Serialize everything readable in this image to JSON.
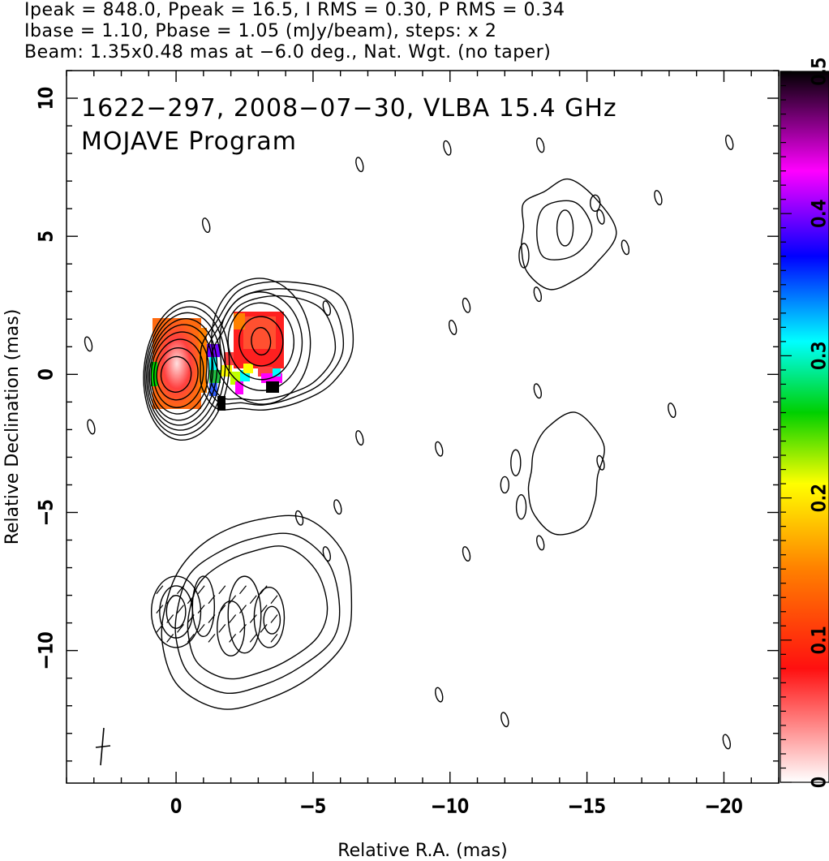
{
  "header": {
    "line1": "Ipeak = 848.0, Ppeak = 16.5, I RMS = 0.30, P RMS = 0.34",
    "line2": "Ibase = 1.10, Pbase = 1.05 (mJy/beam), steps: x 2",
    "line3": "Beam: 1.35x0.48 mas at −6.0 deg., Nat. Wgt. (no taper)"
  },
  "chart_data": {
    "type": "contour",
    "annotations": [
      "1622−297, 2008−07−30, VLBA 15.4 GHz",
      "MOJAVE Program"
    ],
    "xlabel": "Relative R.A. (mas)",
    "ylabel": "Relative Declination (mas)",
    "xlim": [
      4,
      -22
    ],
    "ylim": [
      -14.8,
      11
    ],
    "x_ticks": [
      {
        "value": 0,
        "label": "0"
      },
      {
        "value": -5,
        "label": "−5"
      },
      {
        "value": -10,
        "label": "−10"
      },
      {
        "value": -15,
        "label": "−15"
      },
      {
        "value": -20,
        "label": "−20"
      }
    ],
    "y_ticks": [
      {
        "value": 10,
        "label": "10"
      },
      {
        "value": 5,
        "label": "5"
      },
      {
        "value": 0,
        "label": "0"
      },
      {
        "value": -5,
        "label": "−5"
      },
      {
        "value": -10,
        "label": "−10"
      }
    ],
    "colorbar": {
      "range": [
        0,
        0.5
      ],
      "ticks": [
        {
          "value": 0,
          "label": "0"
        },
        {
          "value": 0.1,
          "label": "0.1"
        },
        {
          "value": 0.2,
          "label": "0.2"
        },
        {
          "value": 0.3,
          "label": "0.3"
        },
        {
          "value": 0.4,
          "label": "0.4"
        },
        {
          "value": 0.5,
          "label": "0.5"
        }
      ],
      "colors": [
        "#ffffff",
        "#ff1010",
        "#ff8000",
        "#ffff00",
        "#00d000",
        "#00ffff",
        "#0000ff",
        "#ff00ff",
        "#000000"
      ]
    },
    "images": [
      {
        "name": "upper",
        "center": [
          0,
          0
        ],
        "core_contours": [
          [
            0.55,
            0.65
          ],
          [
            0.75,
            0.95
          ],
          [
            0.9,
            1.25
          ],
          [
            1.05,
            1.5
          ],
          [
            1.15,
            1.75
          ],
          [
            1.25,
            1.95
          ],
          [
            1.35,
            2.15
          ],
          [
            1.45,
            2.35
          ],
          [
            1.55,
            2.55
          ]
        ],
        "knot": {
          "center": [
            -3.1,
            1.2
          ],
          "contours": [
            [
              0.35,
              0.5
            ],
            [
              0.8,
              0.9
            ],
            [
              1.2,
              1.4
            ],
            [
              1.5,
              1.8
            ],
            [
              1.8,
              2.3
            ]
          ]
        }
      },
      {
        "name": "lower",
        "center": [
          -0.5,
          -8.7
        ]
      }
    ],
    "spurious_contours": [
      [
        -6.7,
        7.6
      ],
      [
        -9.9,
        8.2
      ],
      [
        -13.3,
        8.3
      ],
      [
        -20.2,
        8.4
      ],
      [
        -1.1,
        5.4
      ],
      [
        -17.6,
        6.4
      ],
      [
        -15.5,
        5.7
      ],
      [
        -16.4,
        4.6
      ],
      [
        -5.5,
        2.4
      ],
      [
        -10.6,
        2.5
      ],
      [
        -13.2,
        2.9
      ],
      [
        -10.1,
        1.7
      ],
      [
        3.2,
        1.1
      ],
      [
        -13.2,
        -0.6
      ],
      [
        -18.1,
        -1.3
      ],
      [
        -6.7,
        -2.3
      ],
      [
        3.1,
        -1.9
      ],
      [
        -9.6,
        -2.7
      ],
      [
        -15.5,
        -3.2
      ],
      [
        -4.5,
        -5.2
      ],
      [
        -5.9,
        -4.8
      ],
      [
        -5.5,
        -6.5
      ],
      [
        -10.6,
        -6.5
      ],
      [
        -13.3,
        -6.1
      ],
      [
        -9.6,
        -11.6
      ],
      [
        -12.0,
        -12.5
      ],
      [
        -20.1,
        -13.3
      ]
    ]
  }
}
